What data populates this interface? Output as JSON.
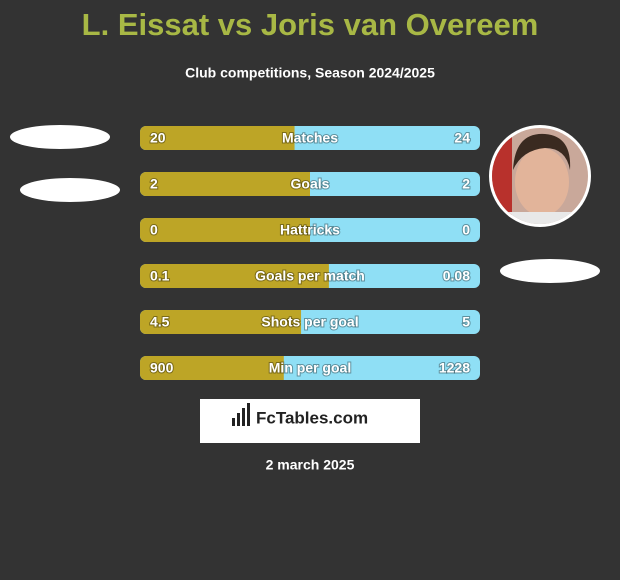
{
  "chart_data": {
    "type": "comparison",
    "title": "L. Eissat vs Joris van Overeem",
    "subtitle": "Club competitions, Season 2024/2025",
    "categories": [
      "Matches",
      "Goals",
      "Hattricks",
      "Goals per match",
      "Shots per goal",
      "Min per goal"
    ],
    "series": [
      {
        "color": "#bda526",
        "values": [
          20,
          2,
          0,
          0.1,
          4.5,
          900
        ]
      },
      {
        "color": "#8fdff5",
        "values": [
          24,
          2,
          0,
          0.08,
          5,
          1228
        ]
      }
    ],
    "logo": "FcTables.com",
    "date": "2 march 2025"
  }
}
